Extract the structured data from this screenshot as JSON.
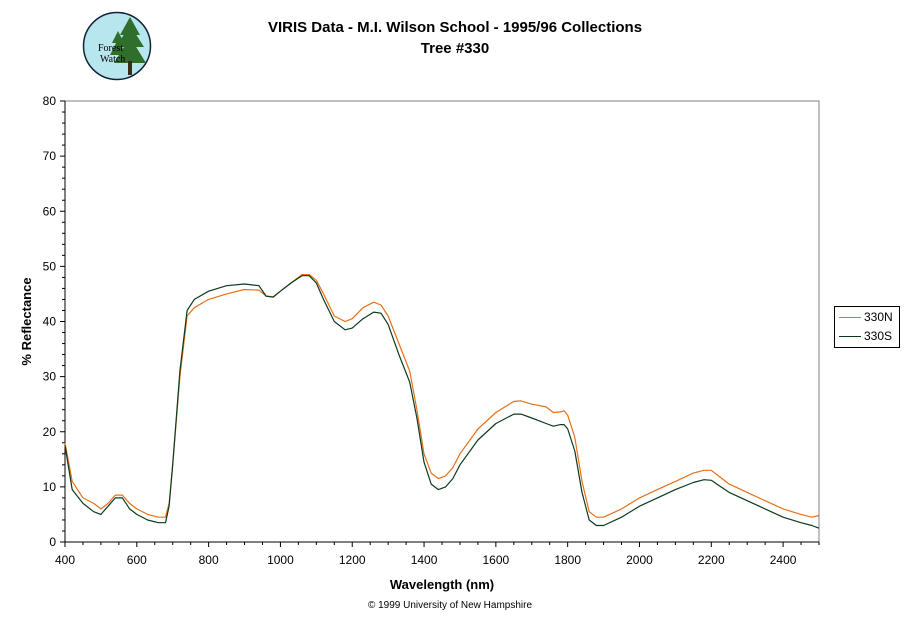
{
  "logo": {
    "text_line1": "Forest",
    "text_line2": "Watch",
    "icon": "forest-watch-logo"
  },
  "chart_data": {
    "type": "line",
    "title": "VIRIS Data - M.I. Wilson School - 1995/96 Collections",
    "subtitle": "Tree #330",
    "xlabel": "Wavelength (nm)",
    "ylabel": "% Reflectance",
    "xlim": [
      400,
      2500
    ],
    "ylim": [
      0,
      80
    ],
    "xticks": [
      400,
      600,
      800,
      1000,
      1200,
      1400,
      1600,
      1800,
      2000,
      2200,
      2400
    ],
    "yticks": [
      0,
      10,
      20,
      30,
      40,
      50,
      60,
      70,
      80
    ],
    "grid": false,
    "legend_position": "right",
    "series": [
      {
        "name": "330N",
        "color": "#e8701a",
        "x": [
          400,
          420,
          450,
          480,
          500,
          520,
          540,
          560,
          580,
          600,
          630,
          660,
          680,
          690,
          700,
          720,
          740,
          760,
          800,
          850,
          900,
          940,
          960,
          980,
          1000,
          1030,
          1060,
          1080,
          1100,
          1120,
          1150,
          1180,
          1200,
          1230,
          1260,
          1280,
          1300,
          1330,
          1360,
          1380,
          1400,
          1420,
          1440,
          1460,
          1480,
          1500,
          1550,
          1600,
          1650,
          1670,
          1700,
          1740,
          1760,
          1780,
          1790,
          1800,
          1820,
          1840,
          1860,
          1880,
          1900,
          1950,
          2000,
          2050,
          2100,
          2150,
          2180,
          2200,
          2220,
          2250,
          2300,
          2350,
          2400,
          2450,
          2480,
          2500
        ],
        "y": [
          18,
          11,
          8,
          7,
          6,
          7,
          8.5,
          8.5,
          7,
          6,
          5,
          4.5,
          4.5,
          7,
          14,
          30,
          41,
          42.5,
          44,
          45,
          45.8,
          45.7,
          44.6,
          44.5,
          45.5,
          47,
          48.5,
          48.5,
          47.5,
          45,
          41,
          40,
          40.5,
          42.5,
          43.5,
          43,
          41,
          36,
          31,
          24,
          16,
          12.5,
          11.5,
          12,
          13.5,
          16,
          20.5,
          23.5,
          25.5,
          25.6,
          25,
          24.5,
          23.5,
          23.6,
          23.8,
          23,
          19,
          11,
          5.5,
          4.5,
          4.5,
          6,
          8,
          9.5,
          11,
          12.5,
          13,
          13,
          12,
          10.5,
          9,
          7.5,
          6,
          5,
          4.5,
          4.8
        ]
      },
      {
        "name": "330S",
        "color": "#0b3b1d",
        "x": [
          400,
          420,
          450,
          480,
          500,
          520,
          540,
          560,
          580,
          600,
          630,
          660,
          680,
          690,
          700,
          720,
          740,
          760,
          800,
          850,
          900,
          940,
          960,
          980,
          1000,
          1030,
          1060,
          1080,
          1100,
          1120,
          1150,
          1180,
          1200,
          1230,
          1260,
          1280,
          1300,
          1330,
          1360,
          1380,
          1400,
          1420,
          1440,
          1460,
          1480,
          1500,
          1550,
          1600,
          1650,
          1670,
          1700,
          1740,
          1760,
          1780,
          1790,
          1800,
          1820,
          1840,
          1860,
          1880,
          1900,
          1950,
          2000,
          2050,
          2100,
          2150,
          2180,
          2200,
          2220,
          2250,
          2300,
          2350,
          2400,
          2450,
          2480,
          2500
        ],
        "y": [
          17.5,
          9.5,
          7,
          5.5,
          5,
          6.5,
          8,
          8,
          6,
          5,
          4,
          3.5,
          3.5,
          6.5,
          14,
          31,
          42,
          44,
          45.5,
          46.5,
          46.8,
          46.5,
          44.6,
          44.4,
          45.5,
          47,
          48.3,
          48.3,
          47,
          44,
          40,
          38.5,
          38.8,
          40.5,
          41.7,
          41.5,
          39.5,
          34,
          29,
          22.5,
          14.5,
          10.5,
          9.5,
          10,
          11.5,
          14,
          18.5,
          21.5,
          23.2,
          23.2,
          22.5,
          21.5,
          21,
          21.3,
          21.3,
          20.5,
          16.5,
          9,
          4,
          3,
          3,
          4.5,
          6.5,
          8,
          9.5,
          10.8,
          11.3,
          11.2,
          10.3,
          9,
          7.5,
          6,
          4.5,
          3.5,
          3,
          2.5
        ]
      }
    ]
  },
  "copyright": "© 1999 University of New Hampshire"
}
